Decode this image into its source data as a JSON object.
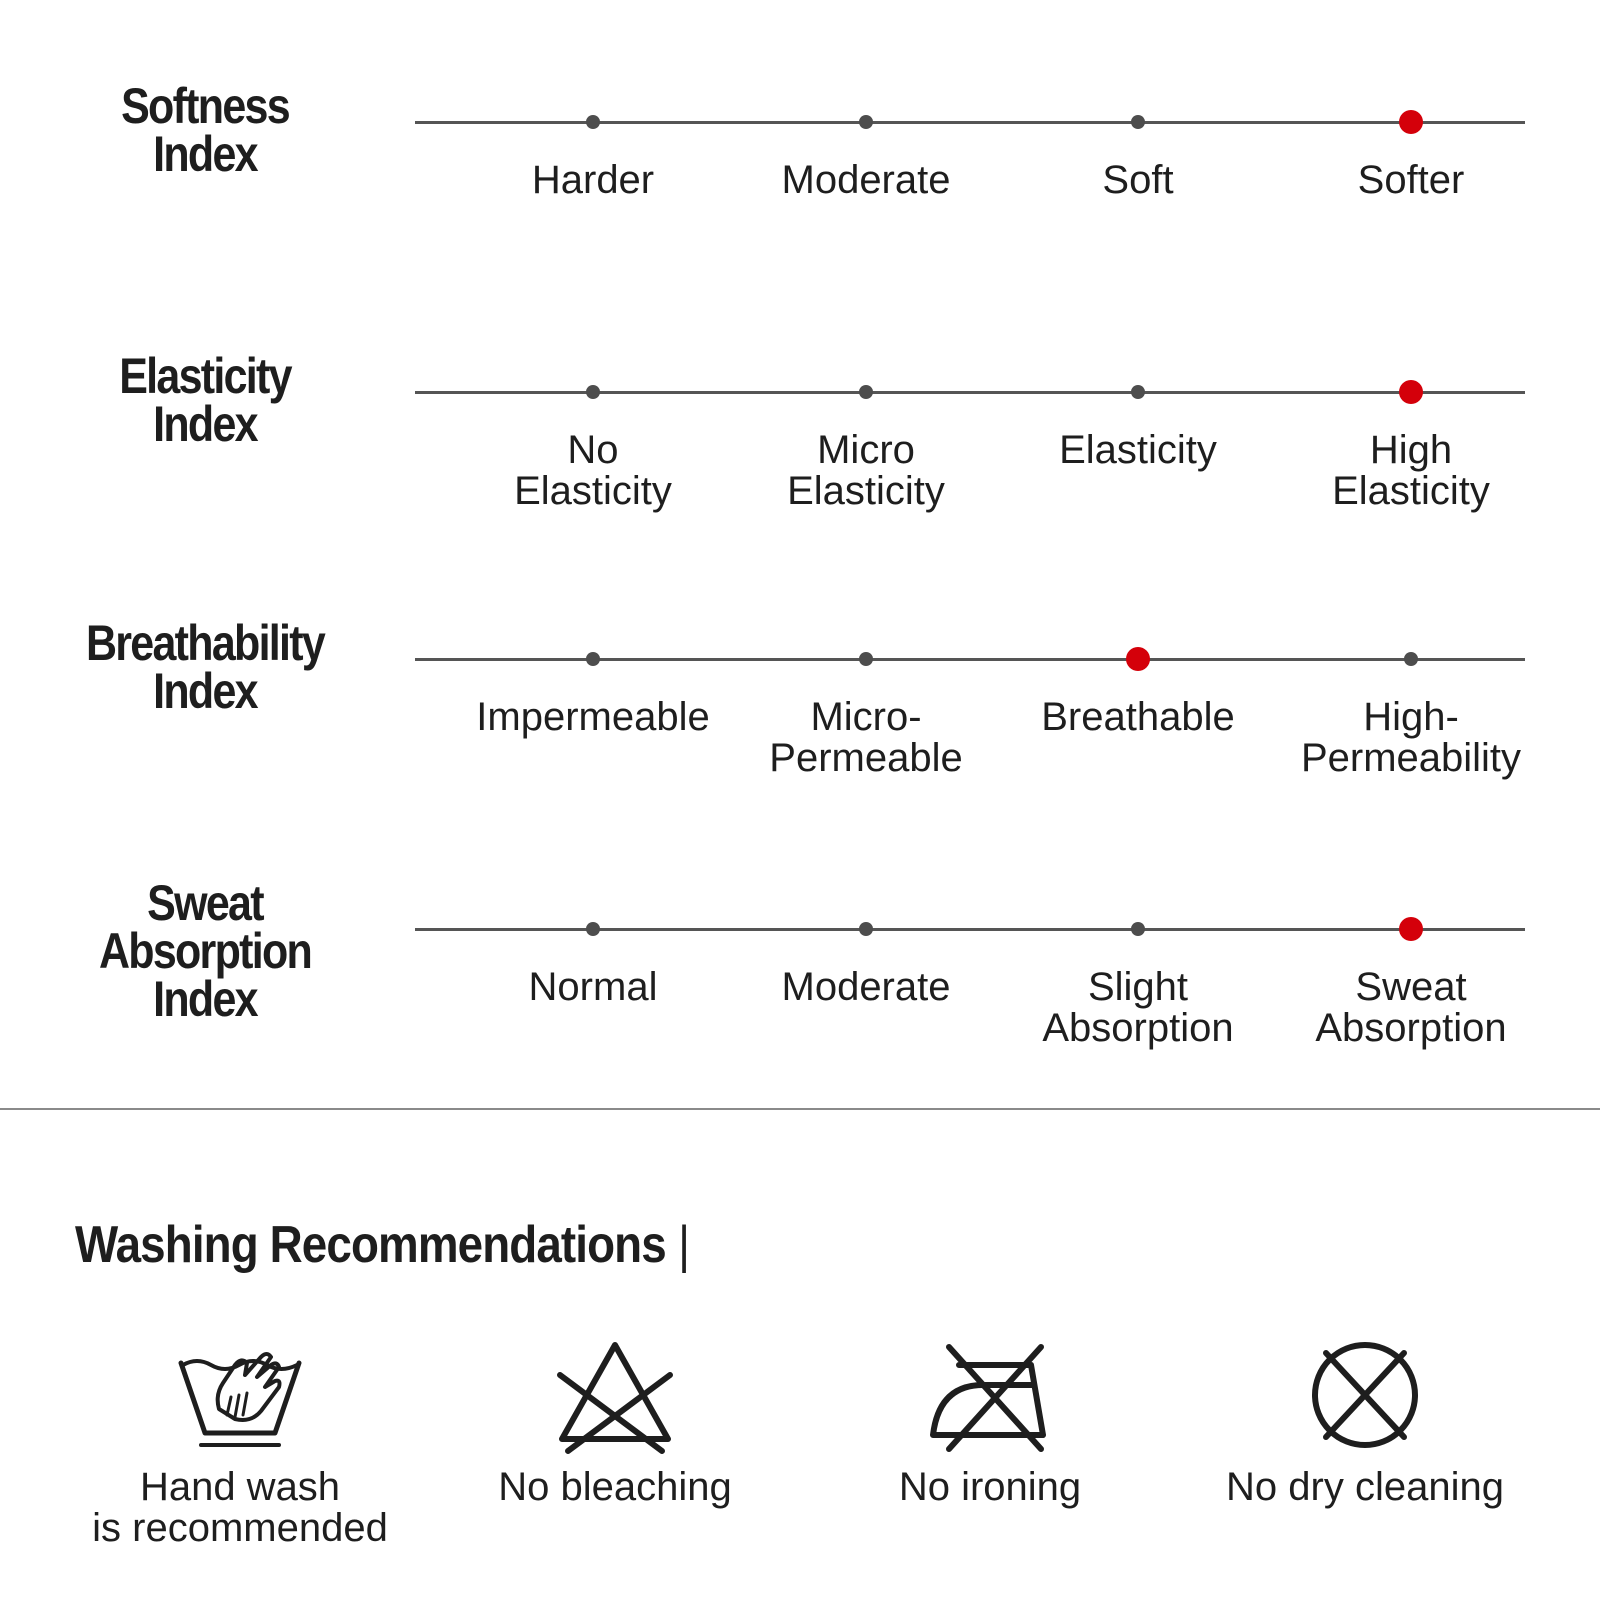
{
  "indices": [
    {
      "title_lines": [
        "Softness",
        "Index"
      ],
      "active_index": 3,
      "levels": [
        {
          "lines": [
            "Harder"
          ]
        },
        {
          "lines": [
            "Moderate"
          ]
        },
        {
          "lines": [
            "Soft"
          ]
        },
        {
          "lines": [
            "Softer"
          ]
        }
      ]
    },
    {
      "title_lines": [
        "Elasticity",
        "Index"
      ],
      "active_index": 3,
      "levels": [
        {
          "lines": [
            "No",
            "Elasticity"
          ]
        },
        {
          "lines": [
            "Micro",
            "Elasticity"
          ]
        },
        {
          "lines": [
            "Elasticity"
          ]
        },
        {
          "lines": [
            "High",
            "Elasticity"
          ]
        }
      ]
    },
    {
      "title_lines": [
        "Breathability",
        "Index"
      ],
      "active_index": 2,
      "levels": [
        {
          "lines": [
            "Impermeable"
          ]
        },
        {
          "lines": [
            "Micro-",
            "Permeable"
          ]
        },
        {
          "lines": [
            "Breathable"
          ]
        },
        {
          "lines": [
            "High-",
            "Permeability"
          ]
        }
      ]
    },
    {
      "title_lines": [
        "Sweat",
        "Absorption",
        "Index"
      ],
      "active_index": 3,
      "levels": [
        {
          "lines": [
            "Normal"
          ]
        },
        {
          "lines": [
            "Moderate"
          ]
        },
        {
          "lines": [
            "Slight",
            "Absorption"
          ]
        },
        {
          "lines": [
            "Sweat",
            "Absorption"
          ]
        }
      ]
    }
  ],
  "colors": {
    "active_dot": "#d4000a",
    "inactive_dot": "#4d4d4d",
    "track": "#555555",
    "text": "#1e1e1e"
  },
  "washing": {
    "title": "Washing Recommendations",
    "separator": "|",
    "items": [
      {
        "icon": "hand-wash-icon",
        "label_lines": [
          "Hand wash",
          "is recommended"
        ]
      },
      {
        "icon": "no-bleach-icon",
        "label_lines": [
          "No bleaching"
        ]
      },
      {
        "icon": "no-iron-icon",
        "label_lines": [
          "No ironing"
        ]
      },
      {
        "icon": "no-dry-clean-icon",
        "label_lines": [
          "No dry cleaning"
        ]
      }
    ]
  }
}
